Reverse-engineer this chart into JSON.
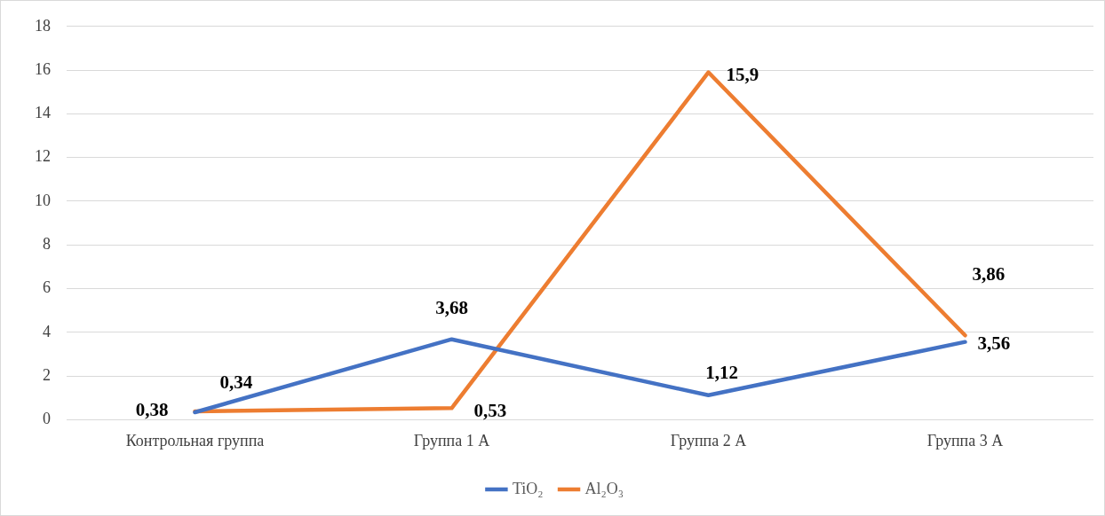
{
  "chart_data": {
    "type": "line",
    "categories": [
      "Контрольная группа",
      "Группа 1 А",
      "Группа 2 А",
      "Группа 3 А"
    ],
    "series": [
      {
        "name": "TiO₂",
        "color": "#4472c4",
        "values": [
          0.34,
          3.68,
          1.12,
          3.56
        ],
        "value_labels": [
          "0,34",
          "3,68",
          "1,12",
          "3,56"
        ]
      },
      {
        "name": "Al₂O₃",
        "color": "#ed7d31",
        "values": [
          0.38,
          0.53,
          15.9,
          3.86
        ],
        "value_labels": [
          "0,38",
          "0,53",
          "15,9",
          "3,86"
        ]
      }
    ],
    "ylim": [
      0,
      18
    ],
    "yticks": [
      0,
      2,
      4,
      6,
      8,
      10,
      12,
      14,
      16,
      18
    ],
    "grid": "y",
    "legend": "bottom",
    "marker": "none",
    "line_style": "solid"
  }
}
